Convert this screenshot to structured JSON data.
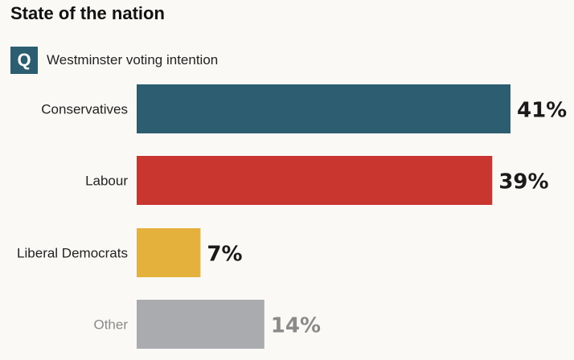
{
  "title": "State of the nation",
  "question": {
    "badge": "Q",
    "text": "Westminster voting intention"
  },
  "chart_data": {
    "type": "bar",
    "orientation": "horizontal",
    "categories": [
      "Conservatives",
      "Labour",
      "Liberal Democrats",
      "Other"
    ],
    "values": [
      41,
      39,
      7,
      14
    ],
    "value_labels": [
      "41%",
      "39%",
      "7%",
      "14%"
    ],
    "unit": "%",
    "colors": [
      "#2c5d70",
      "#c9352f",
      "#e4b13c",
      "#a9abaf"
    ],
    "label_colors": [
      "#222222",
      "#222222",
      "#222222",
      "#8a8a8a"
    ],
    "value_label_colors": [
      "#1a1a1a",
      "#1a1a1a",
      "#1a1a1a",
      "#8a8a8a"
    ],
    "title": "",
    "xlabel": "",
    "ylabel": "",
    "xlim": [
      0,
      41
    ],
    "grid": false,
    "legend": "none"
  }
}
